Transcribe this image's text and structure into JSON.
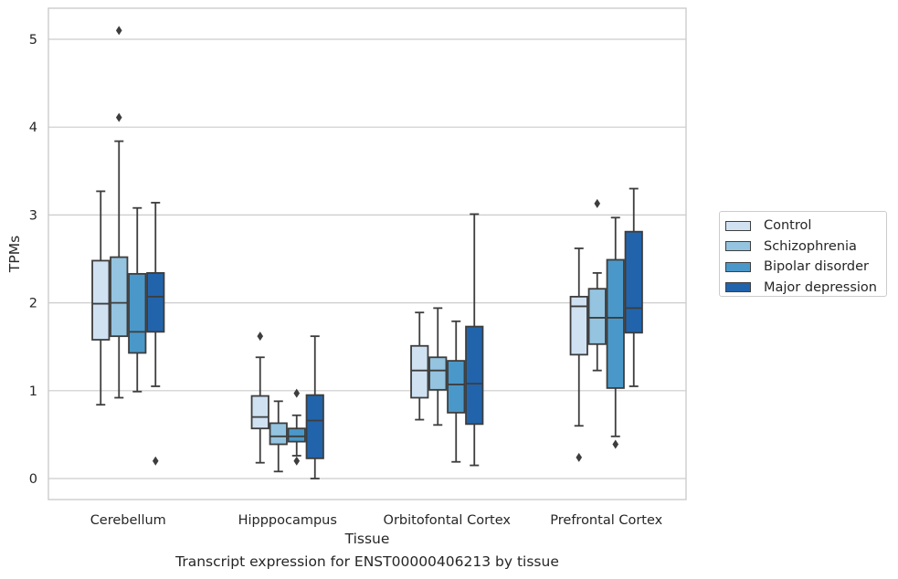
{
  "caption": "Transcript expression for ENST00000406213 by tissue",
  "chart_data": {
    "type": "boxplot",
    "title": "",
    "xlabel": "Tissue",
    "ylabel": "TPMs",
    "ylim": [
      -0.25,
      5.35
    ],
    "yticks": [
      0,
      1,
      2,
      3,
      4,
      5
    ],
    "grid": "horizontal",
    "legend_position": "right",
    "categories": [
      "Cerebellum",
      "Hipppocampus",
      "Orbitofontal Cortex",
      "Prefrontal Cortex"
    ],
    "series": [
      {
        "name": "Control",
        "color": "#d0e1f2",
        "boxes": [
          {
            "whislo": 0.84,
            "q1": 1.58,
            "med": 1.99,
            "q3": 2.48,
            "whishi": 3.27,
            "fliers": []
          },
          {
            "whislo": 0.18,
            "q1": 0.57,
            "med": 0.7,
            "q3": 0.94,
            "whishi": 1.38,
            "fliers": [
              1.62
            ]
          },
          {
            "whislo": 0.67,
            "q1": 0.92,
            "med": 1.23,
            "q3": 1.51,
            "whishi": 1.89,
            "fliers": []
          },
          {
            "whislo": 0.6,
            "q1": 1.41,
            "med": 1.96,
            "q3": 2.07,
            "whishi": 2.62,
            "fliers": [
              0.24
            ]
          }
        ]
      },
      {
        "name": "Schizophrenia",
        "color": "#94c4df",
        "boxes": [
          {
            "whislo": 0.92,
            "q1": 1.62,
            "med": 2.0,
            "q3": 2.52,
            "whishi": 3.84,
            "fliers": [
              4.11,
              5.1
            ]
          },
          {
            "whislo": 0.08,
            "q1": 0.39,
            "med": 0.48,
            "q3": 0.63,
            "whishi": 0.88,
            "fliers": []
          },
          {
            "whislo": 0.61,
            "q1": 1.01,
            "med": 1.23,
            "q3": 1.38,
            "whishi": 1.94,
            "fliers": []
          },
          {
            "whislo": 1.23,
            "q1": 1.53,
            "med": 1.83,
            "q3": 2.16,
            "whishi": 2.34,
            "fliers": [
              3.13
            ]
          }
        ]
      },
      {
        "name": "Bipolar disorder",
        "color": "#4a98c9",
        "boxes": [
          {
            "whislo": 0.99,
            "q1": 1.43,
            "med": 1.67,
            "q3": 2.33,
            "whishi": 3.08,
            "fliers": []
          },
          {
            "whislo": 0.26,
            "q1": 0.42,
            "med": 0.48,
            "q3": 0.57,
            "whishi": 0.72,
            "fliers": [
              0.2,
              0.97
            ]
          },
          {
            "whislo": 0.19,
            "q1": 0.75,
            "med": 1.07,
            "q3": 1.34,
            "whishi": 1.79,
            "fliers": []
          },
          {
            "whislo": 0.48,
            "q1": 1.03,
            "med": 1.83,
            "q3": 2.49,
            "whishi": 2.97,
            "fliers": [
              0.39
            ]
          }
        ]
      },
      {
        "name": "Major depression",
        "color": "#2164ab",
        "boxes": [
          {
            "whislo": 1.05,
            "q1": 1.67,
            "med": 2.07,
            "q3": 2.34,
            "whishi": 3.14,
            "fliers": [
              0.2
            ]
          },
          {
            "whislo": 0.0,
            "q1": 0.23,
            "med": 0.66,
            "q3": 0.95,
            "whishi": 1.62,
            "fliers": []
          },
          {
            "whislo": 0.15,
            "q1": 0.62,
            "med": 1.08,
            "q3": 1.73,
            "whishi": 3.01,
            "fliers": []
          },
          {
            "whislo": 1.05,
            "q1": 1.66,
            "med": 1.94,
            "q3": 2.81,
            "whishi": 3.3,
            "fliers": []
          }
        ]
      }
    ]
  }
}
